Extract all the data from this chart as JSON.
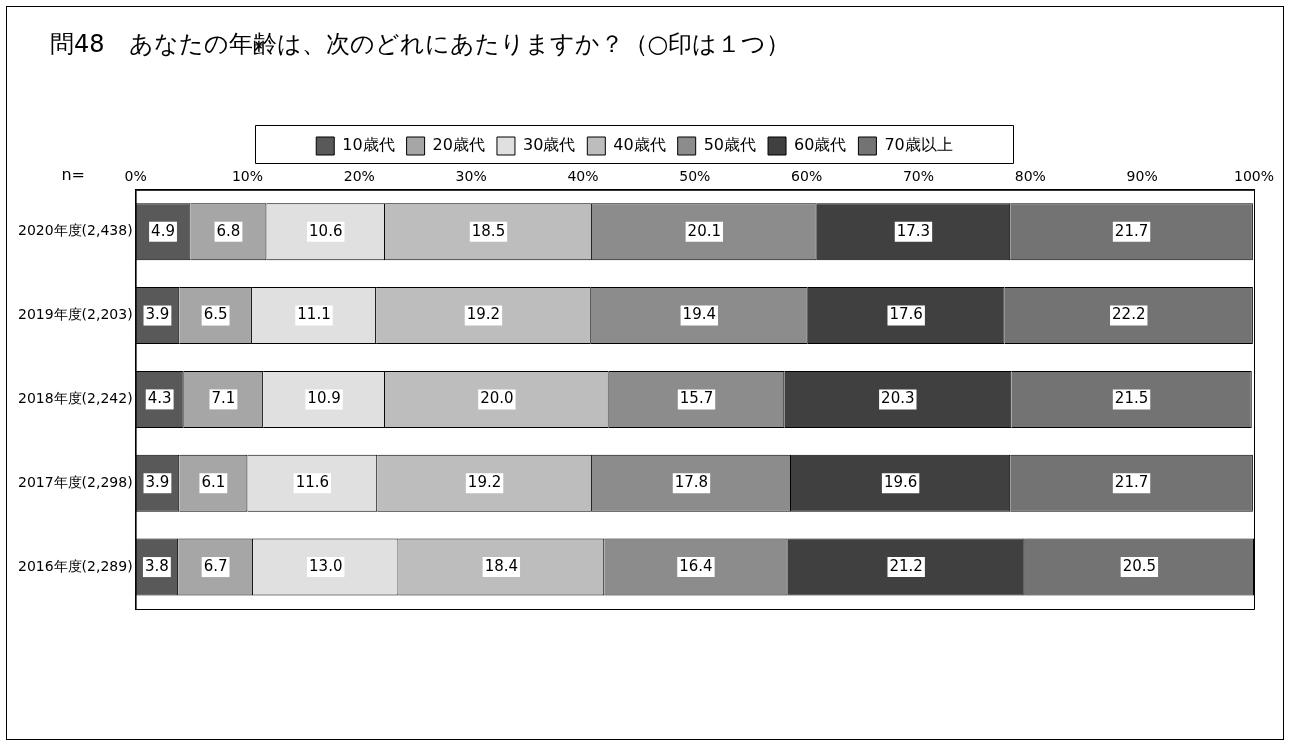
{
  "chart_data": {
    "type": "bar",
    "orientation": "horizontal",
    "stacked": true,
    "title": "問48　あなたの年齢は、次のどれにあたりますか？（○印は１つ）",
    "annotations": [
      "n="
    ],
    "categories": [
      "2020年度(2,438)",
      "2019年度(2,203)",
      "2018年度(2,242)",
      "2017年度(2,298)",
      "2016年度(2,289)"
    ],
    "series": [
      {
        "name": "10歳代",
        "color": "#595959",
        "values": [
          4.9,
          3.9,
          4.3,
          3.9,
          3.8
        ],
        "value_labels": [
          "4.9",
          "3.9",
          "4.3",
          "3.9",
          "3.8"
        ]
      },
      {
        "name": "20歳代",
        "color": "#a6a6a6",
        "values": [
          6.8,
          6.5,
          7.1,
          6.1,
          6.7
        ],
        "value_labels": [
          "6.8",
          "6.5",
          "7.1",
          "6.1",
          "6.7"
        ]
      },
      {
        "name": "30歳代",
        "color": "#e0e0e0",
        "values": [
          10.6,
          11.1,
          10.9,
          11.6,
          13.0
        ],
        "value_labels": [
          "10.6",
          "11.1",
          "10.9",
          "11.6",
          "13.0"
        ]
      },
      {
        "name": "40歳代",
        "color": "#bdbdbd",
        "values": [
          18.5,
          19.2,
          20.0,
          19.2,
          18.4
        ],
        "value_labels": [
          "18.5",
          "19.2",
          "20.0",
          "19.2",
          "18.4"
        ]
      },
      {
        "name": "50歳代",
        "color": "#8c8c8c",
        "values": [
          20.1,
          19.4,
          15.7,
          17.8,
          16.4
        ],
        "value_labels": [
          "20.1",
          "19.4",
          "15.7",
          "17.8",
          "16.4"
        ]
      },
      {
        "name": "60歳代",
        "color": "#404040",
        "values": [
          17.3,
          17.6,
          20.3,
          19.6,
          21.2
        ],
        "value_labels": [
          "17.3",
          "17.6",
          "20.3",
          "19.6",
          "21.2"
        ]
      },
      {
        "name": "70歳以上",
        "color": "#737373",
        "values": [
          21.7,
          22.2,
          21.5,
          21.7,
          20.5
        ],
        "value_labels": [
          "21.7",
          "22.2",
          "21.5",
          "21.7",
          "20.5"
        ]
      }
    ],
    "xlim": [
      0,
      100
    ],
    "xticks": [
      {
        "value": 0,
        "label": "0%"
      },
      {
        "value": 10,
        "label": "10%"
      },
      {
        "value": 20,
        "label": "20%"
      },
      {
        "value": 30,
        "label": "30%"
      },
      {
        "value": 40,
        "label": "40%"
      },
      {
        "value": 50,
        "label": "50%"
      },
      {
        "value": 60,
        "label": "60%"
      },
      {
        "value": 70,
        "label": "70%"
      },
      {
        "value": 80,
        "label": "80%"
      },
      {
        "value": 90,
        "label": "90%"
      },
      {
        "value": 100,
        "label": "100%"
      }
    ],
    "grid": false,
    "legend": "top"
  }
}
